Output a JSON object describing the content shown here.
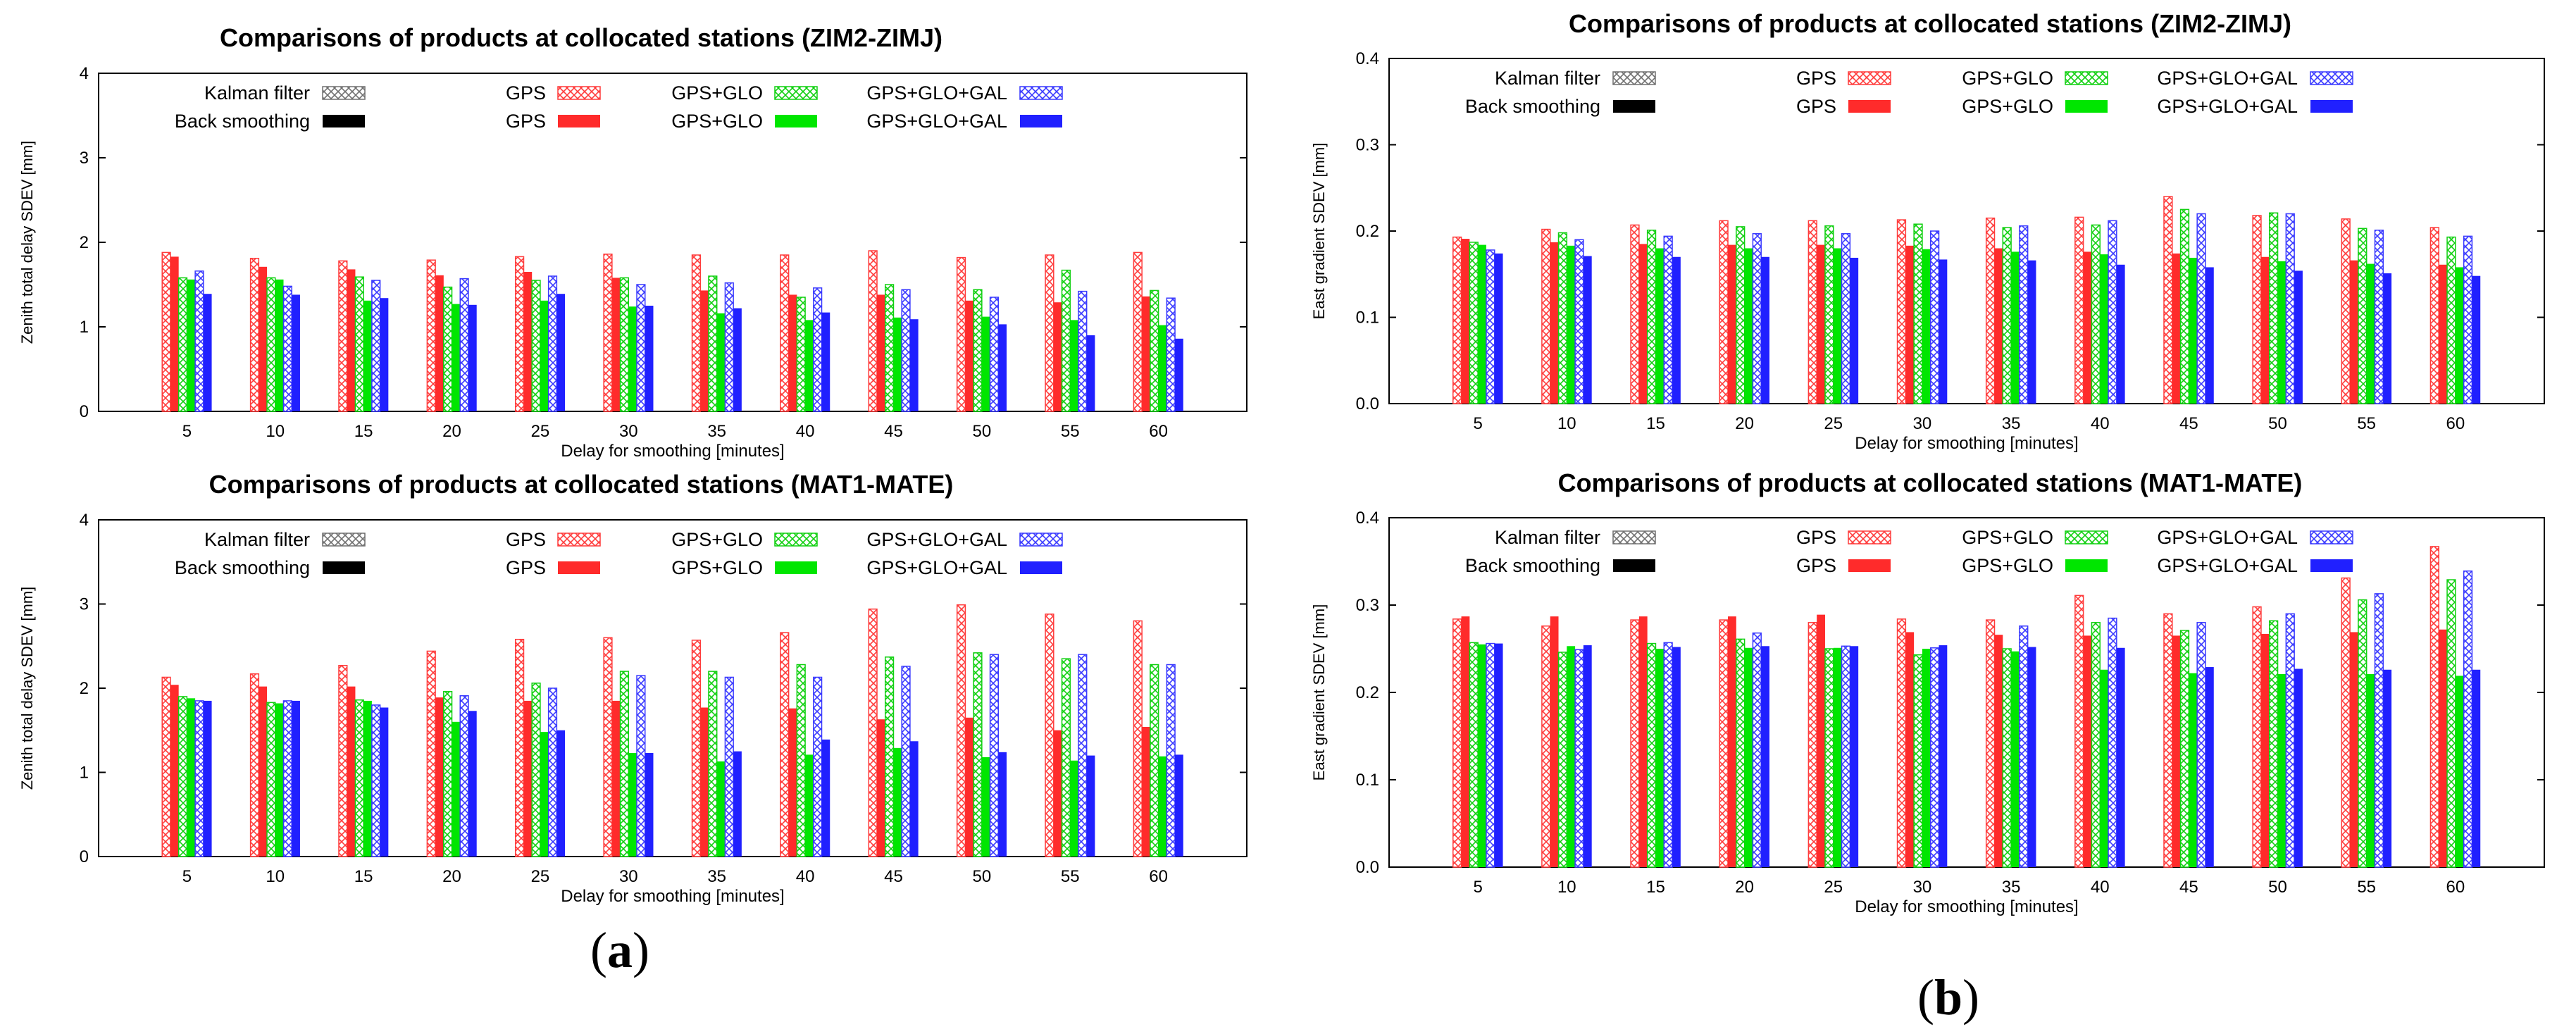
{
  "panel_labels": {
    "a": {
      "open": "(",
      "letter": "a",
      "close": ")"
    },
    "b": {
      "open": "(",
      "letter": "b",
      "close": ")"
    }
  },
  "legend": {
    "kalman_label": "Kalman filter",
    "back_label": "Back smoothing",
    "series": [
      "GPS",
      "GPS+GLO",
      "GPS+GLO+GAL"
    ],
    "colors": {
      "GPS": "#ff2b2b",
      "GPS+GLO": "#00e600",
      "GPS+GLO+GAL": "#2020ff",
      "Kalman": "#8a8a8a",
      "Back": "#000000"
    }
  },
  "chart_data": [
    {
      "type": "bar",
      "title": "Comparisons of products at collocated stations (ZIM2-ZIMJ)",
      "xlabel": "Delay for smoothing [minutes]",
      "ylabel": "Zenith total delay SDEV [mm]",
      "ylim": [
        0,
        4
      ],
      "yticks": [
        0,
        1,
        2,
        3,
        4
      ],
      "categories": [
        "5",
        "10",
        "15",
        "20",
        "25",
        "30",
        "35",
        "40",
        "45",
        "50",
        "55",
        "60"
      ],
      "grid": false,
      "series": [
        {
          "name": "GPS",
          "method": "Kalman filter",
          "values": [
            1.88,
            1.81,
            1.78,
            1.79,
            1.83,
            1.86,
            1.85,
            1.85,
            1.9,
            1.82,
            1.85,
            1.88
          ]
        },
        {
          "name": "GPS",
          "method": "Back smoothing",
          "values": [
            1.83,
            1.71,
            1.68,
            1.61,
            1.65,
            1.58,
            1.43,
            1.38,
            1.38,
            1.31,
            1.29,
            1.36
          ]
        },
        {
          "name": "GPS+GLO",
          "method": "Kalman filter",
          "values": [
            1.58,
            1.58,
            1.59,
            1.47,
            1.55,
            1.58,
            1.6,
            1.35,
            1.5,
            1.44,
            1.67,
            1.43
          ]
        },
        {
          "name": "GPS+GLO",
          "method": "Back smoothing",
          "values": [
            1.56,
            1.56,
            1.31,
            1.27,
            1.31,
            1.24,
            1.16,
            1.08,
            1.11,
            1.12,
            1.08,
            1.02
          ]
        },
        {
          "name": "GPS+GLO+GAL",
          "method": "Kalman filter",
          "values": [
            1.66,
            1.48,
            1.55,
            1.57,
            1.6,
            1.5,
            1.52,
            1.46,
            1.44,
            1.35,
            1.42,
            1.34
          ]
        },
        {
          "name": "GPS+GLO+GAL",
          "method": "Back smoothing",
          "values": [
            1.39,
            1.38,
            1.34,
            1.26,
            1.39,
            1.25,
            1.22,
            1.17,
            1.09,
            1.03,
            0.9,
            0.86
          ]
        }
      ]
    },
    {
      "type": "bar",
      "title": "Comparisons of products at collocated stations (MAT1-MATE)",
      "xlabel": "Delay for smoothing [minutes]",
      "ylabel": "Zenith total delay SDEV [mm]",
      "ylim": [
        0,
        4
      ],
      "yticks": [
        0,
        1,
        2,
        3,
        4
      ],
      "categories": [
        "5",
        "10",
        "15",
        "20",
        "25",
        "30",
        "35",
        "40",
        "45",
        "50",
        "55",
        "60"
      ],
      "grid": false,
      "series": [
        {
          "name": "GPS",
          "method": "Kalman filter",
          "values": [
            2.13,
            2.17,
            2.27,
            2.44,
            2.58,
            2.6,
            2.57,
            2.66,
            2.94,
            2.99,
            2.88,
            2.8
          ]
        },
        {
          "name": "GPS",
          "method": "Back smoothing",
          "values": [
            2.04,
            2.02,
            2.02,
            1.89,
            1.85,
            1.85,
            1.77,
            1.76,
            1.63,
            1.65,
            1.5,
            1.54
          ]
        },
        {
          "name": "GPS+GLO",
          "method": "Kalman filter",
          "values": [
            1.9,
            1.83,
            1.86,
            1.96,
            2.06,
            2.2,
            2.2,
            2.28,
            2.37,
            2.42,
            2.35,
            2.28
          ]
        },
        {
          "name": "GPS+GLO",
          "method": "Back smoothing",
          "values": [
            1.88,
            1.82,
            1.85,
            1.6,
            1.48,
            1.23,
            1.13,
            1.21,
            1.29,
            1.18,
            1.14,
            1.19
          ]
        },
        {
          "name": "GPS+GLO+GAL",
          "method": "Kalman filter",
          "values": [
            1.85,
            1.85,
            1.8,
            1.91,
            2.0,
            2.15,
            2.13,
            2.13,
            2.26,
            2.4,
            2.4,
            2.28
          ]
        },
        {
          "name": "GPS+GLO+GAL",
          "method": "Back smoothing",
          "values": [
            1.85,
            1.85,
            1.77,
            1.73,
            1.5,
            1.23,
            1.25,
            1.39,
            1.37,
            1.24,
            1.2,
            1.21
          ]
        }
      ]
    },
    {
      "type": "bar",
      "title": "Comparisons of products at collocated stations (ZIM2-ZIMJ)",
      "xlabel": "Delay for smoothing [minutes]",
      "ylabel": "East gradient SDEV [mm]",
      "ylim": [
        0,
        0.4
      ],
      "yticks": [
        "0.0",
        "0.1",
        "0.2",
        "0.3",
        "0.4"
      ],
      "categories": [
        "5",
        "10",
        "15",
        "20",
        "25",
        "30",
        "35",
        "40",
        "45",
        "50",
        "55",
        "60"
      ],
      "grid": false,
      "series": [
        {
          "name": "GPS",
          "method": "Kalman filter",
          "values": [
            0.193,
            0.202,
            0.207,
            0.212,
            0.212,
            0.213,
            0.215,
            0.216,
            0.24,
            0.218,
            0.214,
            0.204
          ]
        },
        {
          "name": "GPS",
          "method": "Back smoothing",
          "values": [
            0.191,
            0.187,
            0.185,
            0.184,
            0.184,
            0.183,
            0.18,
            0.176,
            0.174,
            0.17,
            0.166,
            0.161
          ]
        },
        {
          "name": "GPS+GLO",
          "method": "Kalman filter",
          "values": [
            0.187,
            0.198,
            0.201,
            0.205,
            0.206,
            0.208,
            0.204,
            0.207,
            0.225,
            0.221,
            0.203,
            0.193
          ]
        },
        {
          "name": "GPS+GLO",
          "method": "Back smoothing",
          "values": [
            0.184,
            0.183,
            0.18,
            0.18,
            0.18,
            0.179,
            0.176,
            0.173,
            0.169,
            0.165,
            0.162,
            0.158
          ]
        },
        {
          "name": "GPS+GLO+GAL",
          "method": "Kalman filter",
          "values": [
            0.178,
            0.19,
            0.194,
            0.197,
            0.197,
            0.2,
            0.206,
            0.212,
            0.22,
            0.22,
            0.201,
            0.194
          ]
        },
        {
          "name": "GPS+GLO+GAL",
          "method": "Back smoothing",
          "values": [
            0.174,
            0.171,
            0.17,
            0.17,
            0.169,
            0.167,
            0.166,
            0.161,
            0.158,
            0.154,
            0.151,
            0.148
          ]
        }
      ]
    },
    {
      "type": "bar",
      "title": "Comparisons of products at collocated stations (MAT1-MATE)",
      "xlabel": "Delay for smoothing [minutes]",
      "ylabel": "East gradient SDEV [mm]",
      "ylim": [
        0,
        0.4
      ],
      "yticks": [
        "0.0",
        "0.1",
        "0.2",
        "0.3",
        "0.4"
      ],
      "categories": [
        "5",
        "10",
        "15",
        "20",
        "25",
        "30",
        "35",
        "40",
        "45",
        "50",
        "55",
        "60"
      ],
      "grid": false,
      "series": [
        {
          "name": "GPS",
          "method": "Kalman filter",
          "values": [
            0.284,
            0.276,
            0.283,
            0.283,
            0.28,
            0.284,
            0.283,
            0.311,
            0.29,
            0.298,
            0.331,
            0.367
          ]
        },
        {
          "name": "GPS",
          "method": "Back smoothing",
          "values": [
            0.287,
            0.287,
            0.287,
            0.287,
            0.289,
            0.269,
            0.266,
            0.265,
            0.265,
            0.267,
            0.269,
            0.272
          ]
        },
        {
          "name": "GPS+GLO",
          "method": "Kalman filter",
          "values": [
            0.257,
            0.246,
            0.256,
            0.261,
            0.25,
            0.243,
            0.25,
            0.28,
            0.271,
            0.282,
            0.306,
            0.329
          ]
        },
        {
          "name": "GPS+GLO",
          "method": "Back smoothing",
          "values": [
            0.255,
            0.253,
            0.25,
            0.251,
            0.251,
            0.25,
            0.247,
            0.226,
            0.222,
            0.221,
            0.221,
            0.219
          ]
        },
        {
          "name": "GPS+GLO+GAL",
          "method": "Kalman filter",
          "values": [
            0.256,
            0.249,
            0.257,
            0.268,
            0.253,
            0.251,
            0.276,
            0.285,
            0.28,
            0.29,
            0.313,
            0.339
          ]
        },
        {
          "name": "GPS+GLO+GAL",
          "method": "Back smoothing",
          "values": [
            0.256,
            0.254,
            0.252,
            0.253,
            0.253,
            0.254,
            0.252,
            0.251,
            0.229,
            0.227,
            0.226,
            0.226
          ]
        }
      ]
    }
  ]
}
